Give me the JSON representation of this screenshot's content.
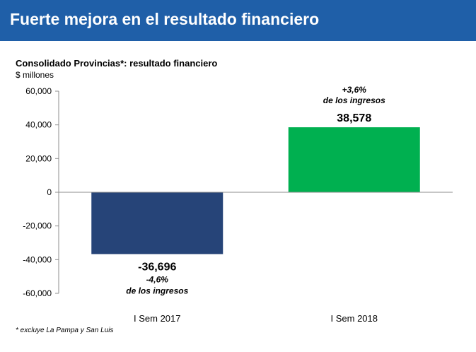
{
  "banner": {
    "title": "Fuerte mejora en el resultado financiero"
  },
  "chart_data": {
    "type": "bar",
    "title": "Consolidado Provincias*:  resultado financiero",
    "ylabel": "$ millones",
    "xlabel": "",
    "categories": [
      "I Sem 2017",
      "I Sem 2018"
    ],
    "values": [
      -36696,
      38578
    ],
    "value_labels": [
      "-36,696",
      "38,578"
    ],
    "annotations": [
      {
        "pct": "-4,6%",
        "text": "de los ingresos"
      },
      {
        "pct": "+3,6%",
        "text": "de los ingresos"
      }
    ],
    "bar_colors": [
      "#264478",
      "#00b050"
    ],
    "ylim": [
      -60000,
      60000
    ],
    "yticks": [
      60000,
      40000,
      20000,
      0,
      -20000,
      -40000,
      -60000
    ],
    "ytick_labels": [
      "60,000",
      "40,000",
      "20,000",
      "0",
      "-20,000",
      "-40,000",
      "-60,000"
    ],
    "grid": false
  },
  "footnote": "* excluye La Pampa y San Luis"
}
